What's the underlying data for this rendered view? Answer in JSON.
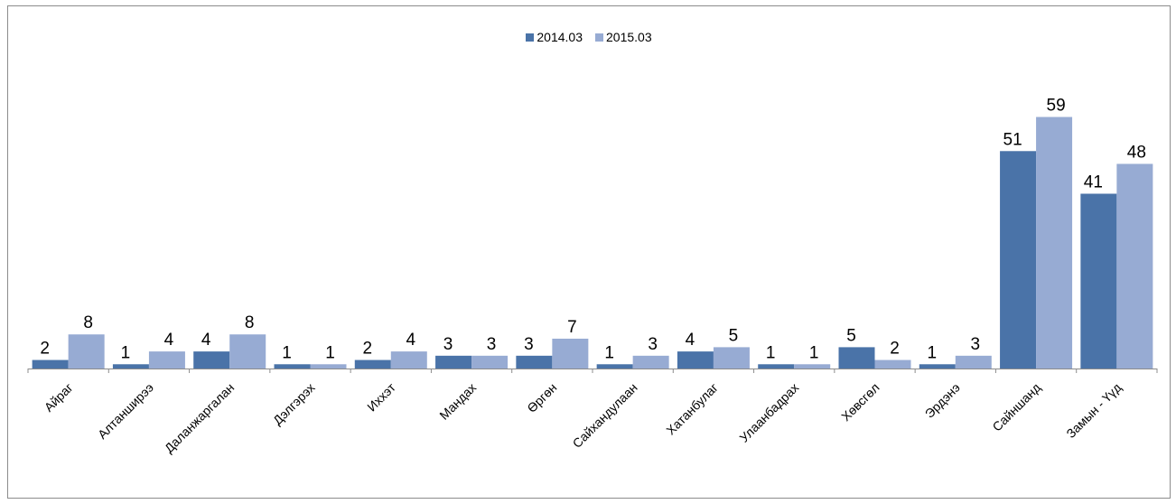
{
  "chart_data": {
    "type": "bar",
    "categories": [
      "Айраг",
      "Алтанширээ",
      "Даланжаргалан",
      "Дэлгэрэх",
      "Иххэт",
      "Мандах",
      "Өргөн",
      "Сайхандулаан",
      "Хатанбулаг",
      "Улаанбадрах",
      "Хөвсгөл",
      "Эрдэнэ",
      "Сайншанд",
      "Замын - Үүд"
    ],
    "series": [
      {
        "name": "2014.03",
        "color": "#4a73a8",
        "values": [
          2,
          1,
          4,
          1,
          2,
          3,
          3,
          1,
          4,
          1,
          5,
          1,
          51,
          41
        ]
      },
      {
        "name": "2015.03",
        "color": "#97abd3",
        "values": [
          8,
          4,
          8,
          1,
          4,
          3,
          7,
          3,
          5,
          1,
          2,
          3,
          59,
          48
        ]
      }
    ],
    "ylim": [
      0,
      59
    ],
    "legend": "top-center",
    "grid": false,
    "data_labels": true
  }
}
